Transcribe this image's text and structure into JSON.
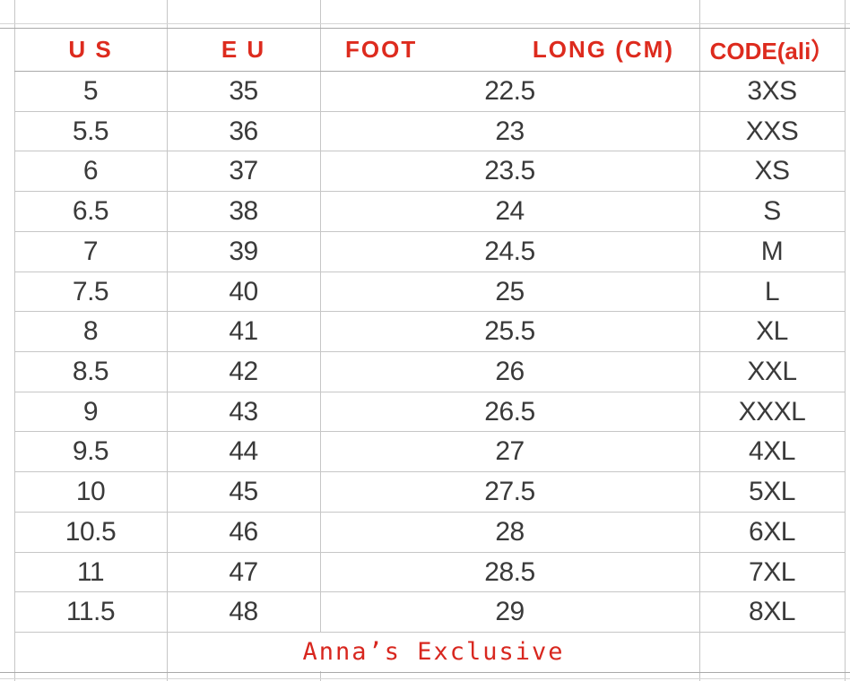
{
  "table": {
    "headers": {
      "us": "U S",
      "eu": "E U",
      "foot_part1": "FOOT",
      "foot_part2": "LONG (CM)",
      "code": "CODE(ali）"
    },
    "rows": [
      {
        "us": "5",
        "eu": "35",
        "foot": "22.5",
        "code": "3XS"
      },
      {
        "us": "5.5",
        "eu": "36",
        "foot": "23",
        "code": "XXS"
      },
      {
        "us": "6",
        "eu": "37",
        "foot": "23.5",
        "code": "XS"
      },
      {
        "us": "6.5",
        "eu": "38",
        "foot": "24",
        "code": "S"
      },
      {
        "us": "7",
        "eu": "39",
        "foot": "24.5",
        "code": "M"
      },
      {
        "us": "7.5",
        "eu": "40",
        "foot": "25",
        "code": "L"
      },
      {
        "us": "8",
        "eu": "41",
        "foot": "25.5",
        "code": "XL"
      },
      {
        "us": "8.5",
        "eu": "42",
        "foot": "26",
        "code": "XXL"
      },
      {
        "us": "9",
        "eu": "43",
        "foot": "26.5",
        "code": "XXXL"
      },
      {
        "us": "9.5",
        "eu": "44",
        "foot": "27",
        "code": "4XL"
      },
      {
        "us": "10",
        "eu": "45",
        "foot": "27.5",
        "code": "5XL"
      },
      {
        "us": "10.5",
        "eu": "46",
        "foot": "28",
        "code": "6XL"
      },
      {
        "us": "11",
        "eu": "47",
        "foot": "28.5",
        "code": "7XL"
      },
      {
        "us": "11.5",
        "eu": "48",
        "foot": "29",
        "code": "8XL"
      }
    ],
    "footer": "Anna’s Exclusive"
  },
  "colors": {
    "header_red": "#dd2b1e",
    "footer_red": "#d8271f",
    "data_text": "#3a3a3a",
    "grid_light": "#d6d6d6",
    "grid_mid": "#c6c6c6",
    "grid_dark": "#aaaaaa"
  }
}
